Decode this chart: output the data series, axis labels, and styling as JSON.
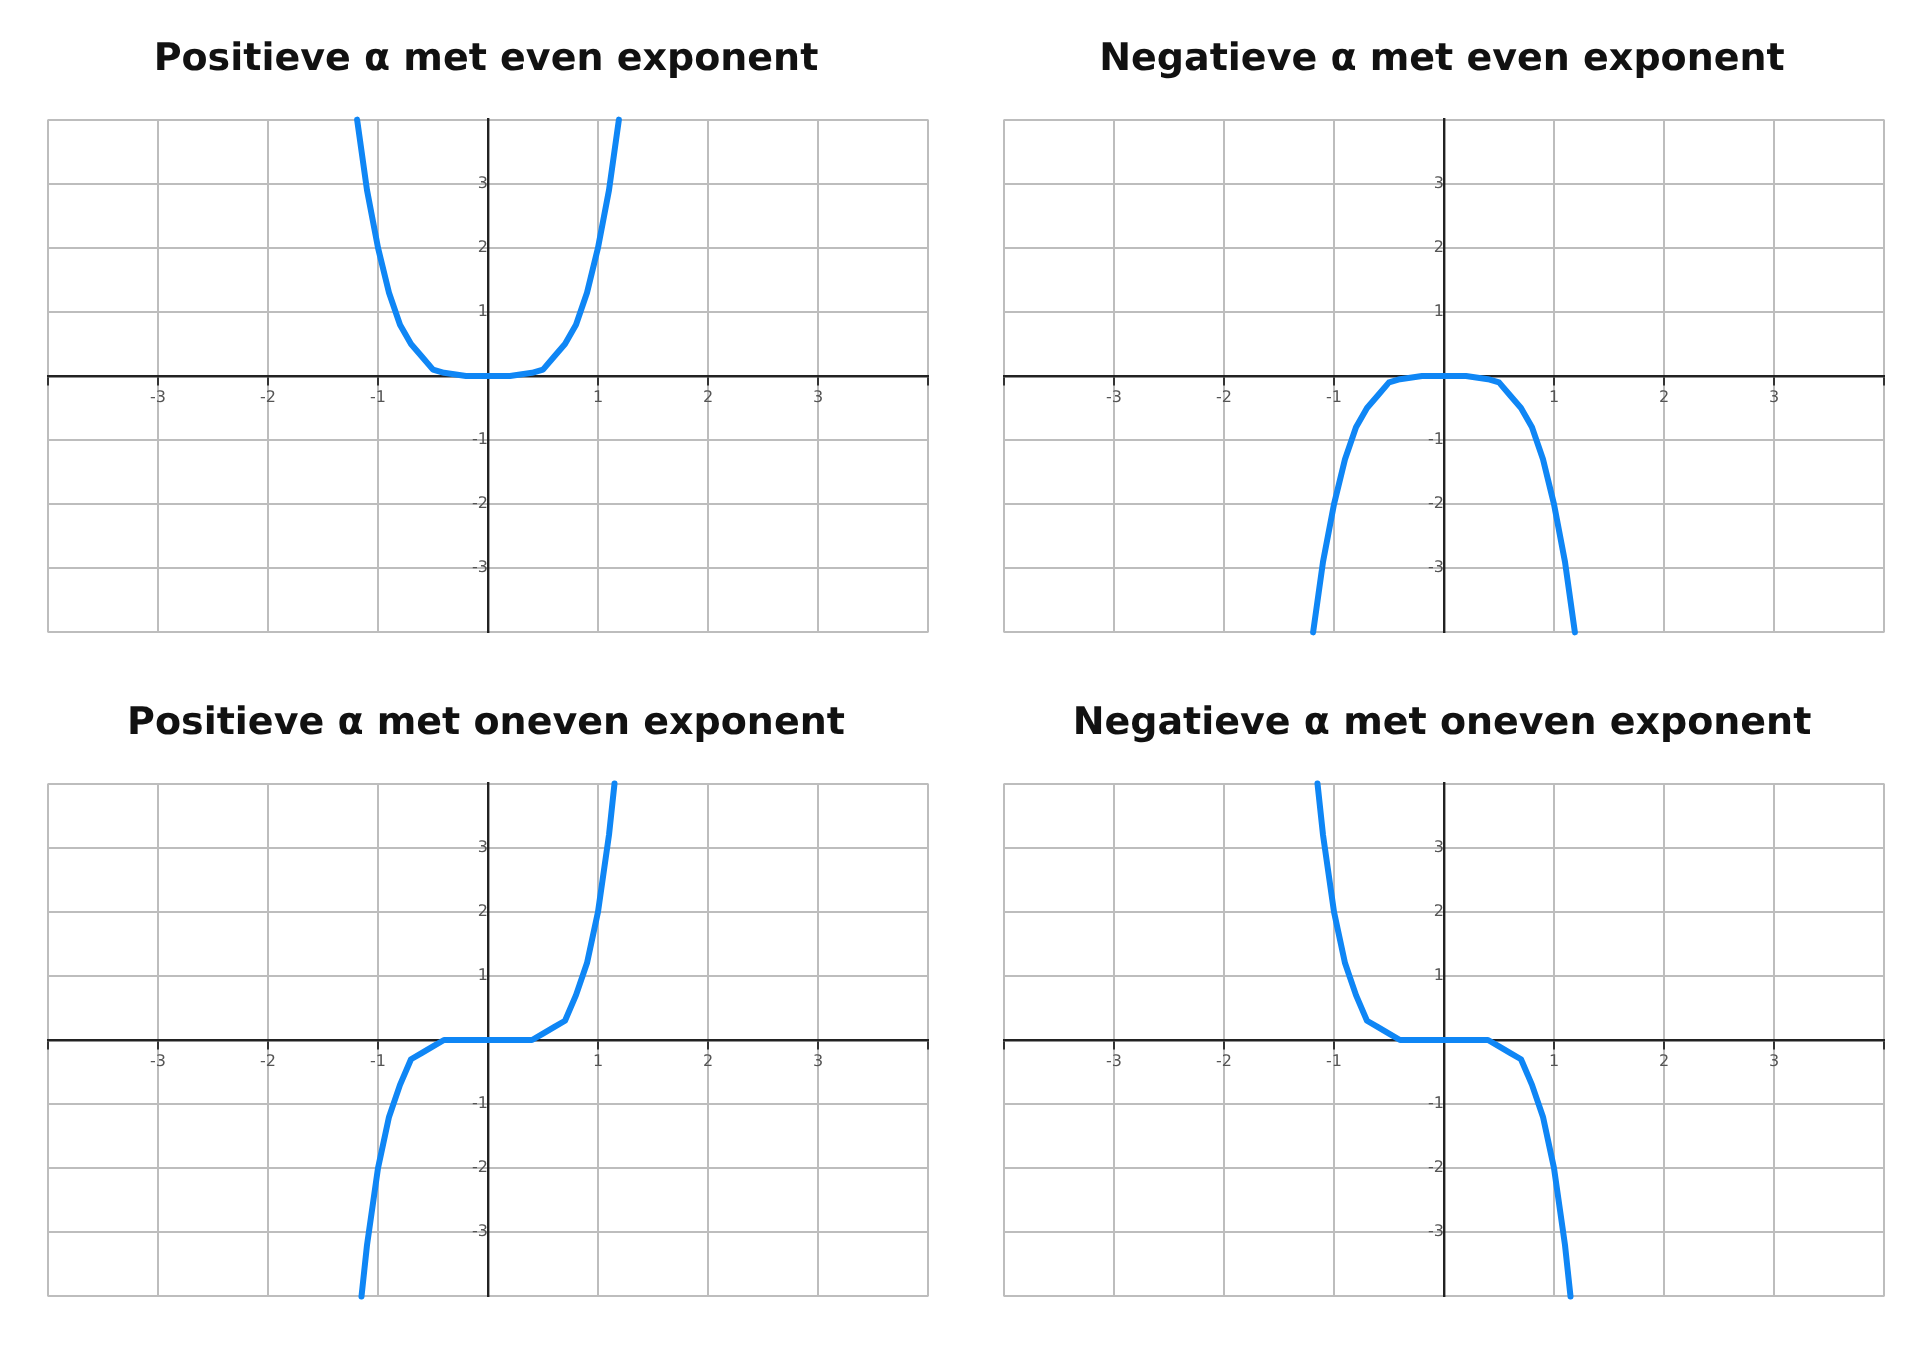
{
  "chart_data": [
    {
      "type": "line",
      "title": "Positieve α met even exponent",
      "x": [
        -1.19,
        -1.1,
        -1,
        -0.9,
        -0.8,
        -0.7,
        -0.6,
        -0.5,
        -0.4,
        -0.2,
        0,
        0.2,
        0.4,
        0.5,
        0.6,
        0.7,
        0.8,
        0.9,
        1,
        1.1,
        1.19
      ],
      "values": [
        4.0,
        2.9,
        2.0,
        1.3,
        0.8,
        0.5,
        0.3,
        0.1,
        0.05,
        0,
        0,
        0,
        0.05,
        0.1,
        0.3,
        0.5,
        0.8,
        1.3,
        2.0,
        2.9,
        4.0
      ],
      "color": "#0f86f5",
      "xlim": [
        -4,
        4
      ],
      "ylim": [
        -4,
        4
      ],
      "xticks": [
        {
          "value": -4,
          "label": null
        },
        -3,
        -2,
        -1,
        {
          "value": 0,
          "label": null
        },
        1,
        2,
        3,
        {
          "value": 4,
          "label": null
        }
      ],
      "yticks": [
        {
          "value": -4,
          "label": null
        },
        -3,
        -2,
        -1,
        {
          "value": 0,
          "label": null
        },
        1,
        2,
        3,
        {
          "value": 4,
          "label": null
        }
      ],
      "grid": true
    },
    {
      "type": "line",
      "title": "Negatieve α met even exponent",
      "x": [
        -1.19,
        -1.1,
        -1,
        -0.9,
        -0.8,
        -0.7,
        -0.6,
        -0.5,
        -0.4,
        -0.2,
        0,
        0.2,
        0.4,
        0.5,
        0.6,
        0.7,
        0.8,
        0.9,
        1,
        1.1,
        1.19
      ],
      "values": [
        -4.0,
        -2.9,
        -2.0,
        -1.3,
        -0.8,
        -0.5,
        -0.3,
        -0.1,
        -0.05,
        0,
        0,
        0,
        -0.05,
        -0.1,
        -0.3,
        -0.5,
        -0.8,
        -1.3,
        -2.0,
        -2.9,
        -4.0
      ],
      "color": "#0f86f5",
      "xlim": [
        -4,
        4
      ],
      "ylim": [
        -4,
        4
      ],
      "xticks": [
        {
          "value": -4,
          "label": null
        },
        -3,
        -2,
        -1,
        {
          "value": 0,
          "label": null
        },
        1,
        2,
        3,
        {
          "value": 4,
          "label": null
        }
      ],
      "yticks": [
        {
          "value": -4,
          "label": null
        },
        -3,
        -2,
        -1,
        {
          "value": 0,
          "label": null
        },
        1,
        2,
        3,
        {
          "value": 4,
          "label": null
        }
      ],
      "grid": true
    },
    {
      "type": "line",
      "title": "Positieve α met oneven exponent",
      "x": [
        -1.15,
        -1.1,
        -1,
        -0.9,
        -0.8,
        -0.7,
        -0.6,
        -0.5,
        -0.4,
        -0.2,
        0,
        0.2,
        0.4,
        0.5,
        0.6,
        0.7,
        0.8,
        0.9,
        1,
        1.1,
        1.15
      ],
      "values": [
        -4.0,
        -3.2,
        -2.0,
        -1.2,
        -0.7,
        -0.3,
        -0.2,
        -0.1,
        0,
        0,
        0,
        0,
        0,
        0.1,
        0.2,
        0.3,
        0.7,
        1.2,
        2.0,
        3.2,
        4.0
      ],
      "color": "#0f86f5",
      "xlim": [
        -4,
        4
      ],
      "ylim": [
        -4,
        4
      ],
      "xticks": [
        {
          "value": -4,
          "label": null
        },
        -3,
        -2,
        -1,
        {
          "value": 0,
          "label": null
        },
        1,
        2,
        3,
        {
          "value": 4,
          "label": null
        }
      ],
      "yticks": [
        {
          "value": -4,
          "label": null
        },
        -3,
        -2,
        -1,
        {
          "value": 0,
          "label": null
        },
        1,
        2,
        3,
        {
          "value": 4,
          "label": null
        }
      ],
      "grid": true
    },
    {
      "type": "line",
      "title": "Negatieve α met oneven exponent",
      "x": [
        -1.15,
        -1.1,
        -1,
        -0.9,
        -0.8,
        -0.7,
        -0.6,
        -0.5,
        -0.4,
        -0.2,
        0,
        0.2,
        0.4,
        0.5,
        0.6,
        0.7,
        0.8,
        0.9,
        1,
        1.1,
        1.15
      ],
      "values": [
        4.0,
        3.2,
        2.0,
        1.2,
        0.7,
        0.3,
        0.2,
        0.1,
        0,
        0,
        0,
        0,
        0,
        -0.1,
        -0.2,
        -0.3,
        -0.7,
        -1.2,
        -2.0,
        -3.2,
        -4.0
      ],
      "color": "#0f86f5",
      "xlim": [
        -4,
        4
      ],
      "ylim": [
        -4,
        4
      ],
      "xticks": [
        {
          "value": -4,
          "label": null
        },
        -3,
        -2,
        -1,
        {
          "value": 0,
          "label": null
        },
        1,
        2,
        3,
        {
          "value": 4,
          "label": null
        }
      ],
      "yticks": [
        {
          "value": -4,
          "label": null
        },
        -3,
        -2,
        -1,
        {
          "value": 0,
          "label": null
        },
        1,
        2,
        3,
        {
          "value": 4,
          "label": null
        }
      ],
      "grid": true
    }
  ]
}
